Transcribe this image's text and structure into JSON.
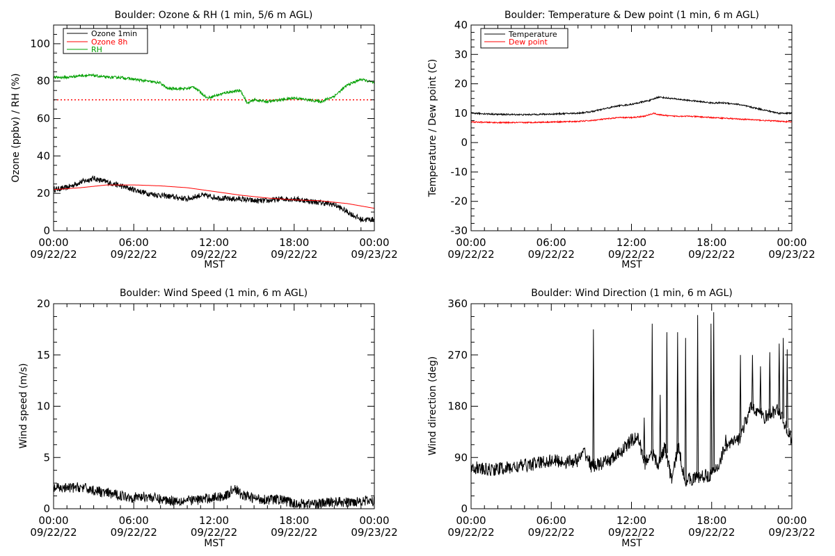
{
  "figure": {
    "title_tl": "Boulder: Ozone & RH (1 min, 5/6 m AGL)",
    "title_tr": "Boulder: Temperature & Dew point (1 min, 6 m AGL)",
    "title_bl": "Boulder: Wind Speed (1 min, 6 m AGL)",
    "title_br": "Boulder: Wind Direction (1 min, 6 m AGL)"
  },
  "chart_data": [
    {
      "type": "line",
      "title": "Boulder: Ozone & RH (1 min, 5/6 m AGL)",
      "xlabel": "MST",
      "ylabel": "Ozone (ppbv) / RH (%)",
      "xlim": [
        0,
        24
      ],
      "ylim": [
        0,
        110
      ],
      "yticks": [
        0,
        20,
        40,
        60,
        80,
        100
      ],
      "xtick_labels": [
        [
          "00:00",
          "09/22/22"
        ],
        [
          "06:00",
          "09/22/22"
        ],
        [
          "12:00",
          "09/22/22"
        ],
        [
          "18:00",
          "09/22/22"
        ],
        [
          "00:00",
          "09/23/22"
        ]
      ],
      "legend": "top-left",
      "reference_lines": [
        {
          "y": 70,
          "color": "#ff0000",
          "style": "dotted"
        }
      ],
      "series": [
        {
          "name": "Ozone 1min",
          "color": "#000000",
          "noise": 1.5,
          "x": [
            0,
            1,
            2,
            3,
            4,
            5,
            6,
            7,
            8,
            9,
            10,
            11,
            12,
            13,
            14,
            15,
            16,
            17,
            18,
            19,
            20,
            21,
            22,
            23,
            24
          ],
          "y": [
            22,
            23,
            26,
            28,
            26,
            24,
            22,
            20,
            19,
            18,
            17,
            19,
            18,
            17,
            17,
            16,
            16,
            17,
            17,
            16,
            15,
            14,
            10,
            6,
            6
          ]
        },
        {
          "name": "Ozone 8h",
          "color": "#ff0000",
          "noise": 0,
          "x": [
            0,
            2,
            4,
            6,
            8,
            10,
            12,
            14,
            16,
            18,
            20,
            22,
            24
          ],
          "y": [
            22,
            23,
            24.5,
            24.5,
            24,
            23,
            21,
            19,
            17.5,
            16.5,
            16,
            14.5,
            12
          ]
        },
        {
          "name": "RH",
          "color": "#00a000",
          "noise": 0.7,
          "x": [
            0,
            1,
            2,
            3,
            4,
            5,
            6,
            7,
            8,
            8.5,
            9,
            10,
            10.5,
            11,
            11.5,
            12,
            13,
            14,
            14.5,
            15,
            16,
            17,
            18,
            19,
            20,
            21,
            22,
            23,
            24
          ],
          "y": [
            82,
            82,
            83,
            83,
            82,
            82,
            81,
            80,
            79,
            76,
            76,
            76,
            77,
            74,
            71,
            72,
            74,
            75,
            68,
            70,
            69,
            70,
            71,
            70,
            69,
            72,
            78,
            81,
            79
          ]
        }
      ]
    },
    {
      "type": "line",
      "title": "Boulder: Temperature & Dew point (1 min, 6 m AGL)",
      "xlabel": "MST",
      "ylabel": "Temperature / Dew point (C)",
      "xlim": [
        0,
        24
      ],
      "ylim": [
        -30,
        40
      ],
      "yticks": [
        -30,
        -20,
        -10,
        0,
        10,
        20,
        30,
        40
      ],
      "xtick_labels": [
        [
          "00:00",
          "09/22/22"
        ],
        [
          "06:00",
          "09/22/22"
        ],
        [
          "12:00",
          "09/22/22"
        ],
        [
          "18:00",
          "09/22/22"
        ],
        [
          "00:00",
          "09/23/22"
        ]
      ],
      "legend": "top-left",
      "series": [
        {
          "name": "Temperature",
          "color": "#000000",
          "noise": 0.25,
          "x": [
            0,
            2,
            4,
            6,
            8,
            9,
            10,
            11,
            12,
            13,
            13.5,
            14,
            15,
            16,
            17,
            18,
            19,
            20,
            21,
            22,
            23,
            24
          ],
          "y": [
            10,
            9.6,
            9.5,
            9.7,
            10,
            10.5,
            11.5,
            12.5,
            13,
            14,
            14.5,
            15.5,
            15,
            14.5,
            14,
            13.5,
            13.5,
            13,
            12,
            11,
            10,
            10
          ]
        },
        {
          "name": "Dew point",
          "color": "#ff0000",
          "noise": 0.2,
          "x": [
            0,
            2,
            4,
            6,
            8,
            9,
            10,
            11,
            12,
            13,
            13.7,
            14,
            15,
            16,
            17,
            18,
            19,
            20,
            21,
            22,
            23,
            24
          ],
          "y": [
            7,
            6.8,
            6.8,
            7,
            7.2,
            7.5,
            8,
            8.5,
            8.5,
            9,
            10,
            9.5,
            9,
            9,
            8.8,
            8.5,
            8.3,
            8,
            7.8,
            7.5,
            7.3,
            7
          ]
        }
      ]
    },
    {
      "type": "line",
      "title": "Boulder: Wind Speed (1 min, 6 m AGL)",
      "xlabel": "MST",
      "ylabel": "Wind speed (m/s)",
      "xlim": [
        0,
        24
      ],
      "ylim": [
        0,
        20
      ],
      "yticks": [
        0,
        5,
        10,
        15,
        20
      ],
      "xtick_labels": [
        [
          "00:00",
          "09/22/22"
        ],
        [
          "06:00",
          "09/22/22"
        ],
        [
          "12:00",
          "09/22/22"
        ],
        [
          "18:00",
          "09/22/22"
        ],
        [
          "00:00",
          "09/23/22"
        ]
      ],
      "series": [
        {
          "color": "#000000",
          "noise": 0.5,
          "x": [
            0,
            1,
            2,
            3,
            4,
            5,
            6,
            7,
            8,
            9,
            10,
            11,
            12,
            13,
            13.5,
            14,
            15,
            16,
            17,
            18,
            19,
            20,
            21,
            22,
            23,
            24
          ],
          "y": [
            2,
            2,
            2.1,
            1.8,
            1.5,
            1.3,
            1.1,
            1.2,
            0.9,
            0.8,
            0.8,
            0.9,
            1.1,
            1.3,
            2.1,
            1.4,
            1,
            0.9,
            0.9,
            0.5,
            0.5,
            0.5,
            0.7,
            0.6,
            0.8,
            0.7
          ]
        }
      ]
    },
    {
      "type": "line",
      "title": "Boulder: Wind Direction (1 min, 6 m AGL)",
      "xlabel": "MST",
      "ylabel": "Wind direction (deg)",
      "xlim": [
        0,
        24
      ],
      "ylim": [
        0,
        360
      ],
      "yticks": [
        0,
        90,
        180,
        270,
        360
      ],
      "xtick_labels": [
        [
          "00:00",
          "09/22/22"
        ],
        [
          "06:00",
          "09/22/22"
        ],
        [
          "12:00",
          "09/22/22"
        ],
        [
          "18:00",
          "09/22/22"
        ],
        [
          "00:00",
          "09/23/22"
        ]
      ],
      "series": [
        {
          "color": "#000000",
          "noise": 12,
          "x": [
            0,
            1,
            2,
            3,
            4,
            5,
            6,
            7,
            8,
            8.5,
            9,
            10,
            11,
            12,
            12.5,
            13,
            13.5,
            14,
            14.5,
            15,
            15.5,
            16,
            17,
            18,
            18.5,
            19,
            19.5,
            20,
            21,
            22,
            23,
            24
          ],
          "y": [
            75,
            68,
            70,
            72,
            76,
            80,
            85,
            82,
            85,
            100,
            75,
            80,
            95,
            120,
            125,
            80,
            100,
            75,
            110,
            50,
            110,
            50,
            55,
            60,
            75,
            110,
            115,
            120,
            180,
            160,
            175,
            120
          ]
        },
        {
          "color": "#000000",
          "noise": 0,
          "spikes": [
            [
              9.1,
              315
            ],
            [
              12.9,
              160
            ],
            [
              13.5,
              325
            ],
            [
              14.1,
              200
            ],
            [
              14.6,
              310
            ],
            [
              15.4,
              310
            ],
            [
              16.0,
              300
            ],
            [
              16.9,
              340
            ],
            [
              17.9,
              325
            ],
            [
              18.1,
              345
            ],
            [
              19.0,
              130
            ],
            [
              20.1,
              270
            ],
            [
              21.0,
              270
            ],
            [
              21.6,
              250
            ],
            [
              22.3,
              275
            ],
            [
              23.0,
              290
            ],
            [
              23.3,
              300
            ],
            [
              23.6,
              280
            ]
          ]
        }
      ]
    }
  ]
}
